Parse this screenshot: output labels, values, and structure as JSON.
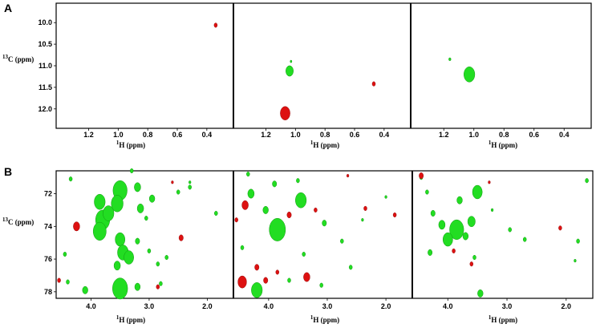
{
  "panels": {
    "A": {
      "letter": "A",
      "ylabel_sup": "13",
      "ylabel_rest": "C (ppm)",
      "xlabel_sup": "1",
      "xlabel_rest": "H (ppm)"
    },
    "B": {
      "letter": "B",
      "ylabel_sup": "13",
      "ylabel_rest": "C (ppm)",
      "xlabel_sup": "1",
      "xlabel_rest": "H (ppm)"
    }
  },
  "colors": {
    "positive": "#22dd22",
    "negative": "#dd1111",
    "frame": "#000000"
  },
  "chart_data": [
    {
      "type": "scatter",
      "panel": "A",
      "subplot": 1,
      "xlim": [
        1.42,
        0.22
      ],
      "ylim": [
        9.55,
        12.45
      ],
      "xticks": [
        "1.2",
        "1.0",
        "0.8",
        "0.6",
        "0.4"
      ],
      "yticks": [
        "10.0",
        "10.5",
        "11.0",
        "11.5",
        "12.0"
      ],
      "series": [
        {
          "color": "red",
          "points": [
            [
              0.34,
              10.06,
              0.3
            ]
          ]
        }
      ]
    },
    {
      "type": "scatter",
      "panel": "A",
      "subplot": 2,
      "xlim": [
        1.42,
        0.22
      ],
      "ylim": [
        9.55,
        12.45
      ],
      "xticks": [
        "1.2",
        "1.0",
        "0.8",
        "0.6",
        "0.4"
      ],
      "series": [
        {
          "color": "green",
          "points": [
            [
              1.04,
              11.12,
              0.7
            ],
            [
              1.03,
              10.9,
              0.15
            ]
          ]
        },
        {
          "color": "red",
          "points": [
            [
              1.07,
              12.1,
              0.9
            ],
            [
              0.47,
              11.42,
              0.3
            ]
          ]
        }
      ]
    },
    {
      "type": "scatter",
      "panel": "A",
      "subplot": 3,
      "xlim": [
        1.42,
        0.22
      ],
      "ylim": [
        9.55,
        12.45
      ],
      "xticks": [
        "1.2",
        "1.0",
        "0.8",
        "0.6",
        "0.4"
      ],
      "series": [
        {
          "color": "green",
          "points": [
            [
              1.03,
              11.2,
              1.0
            ],
            [
              1.16,
              10.85,
              0.2
            ]
          ]
        }
      ]
    },
    {
      "type": "scatter",
      "panel": "B",
      "subplot": 1,
      "xlim": [
        4.6,
        1.55
      ],
      "ylim": [
        70.6,
        78.4
      ],
      "xticks": [
        "4.0",
        "3.0",
        "2.0"
      ],
      "yticks": [
        "72",
        "74",
        "76",
        "78"
      ],
      "series": [
        {
          "color": "green",
          "points": [
            [
              3.5,
              71.8,
              1.3
            ],
            [
              3.55,
              72.6,
              1.1
            ],
            [
              3.85,
              72.5,
              1.0
            ],
            [
              3.8,
              73.6,
              1.3
            ],
            [
              3.85,
              74.3,
              1.2
            ],
            [
              3.7,
              73.2,
              1.0
            ],
            [
              3.5,
              74.8,
              0.9
            ],
            [
              3.45,
              75.6,
              1.0
            ],
            [
              3.35,
              75.9,
              0.9
            ],
            [
              3.5,
              77.8,
              1.4
            ],
            [
              3.2,
              71.6,
              0.6
            ],
            [
              3.15,
              72.9,
              0.6
            ],
            [
              2.95,
              72.3,
              0.5
            ],
            [
              3.2,
              74.9,
              0.4
            ],
            [
              3.0,
              75.5,
              0.3
            ],
            [
              3.55,
              76.4,
              0.6
            ],
            [
              3.2,
              77.7,
              0.5
            ],
            [
              2.8,
              77.5,
              0.3
            ],
            [
              2.7,
              75.9,
              0.3
            ],
            [
              2.5,
              71.9,
              0.3
            ],
            [
              2.3,
              71.6,
              0.3
            ],
            [
              1.85,
              73.2,
              0.3
            ],
            [
              4.4,
              77.4,
              0.3
            ],
            [
              4.35,
              71.1,
              0.3
            ],
            [
              4.1,
              77.9,
              0.5
            ],
            [
              4.45,
              75.7,
              0.3
            ],
            [
              3.3,
              70.6,
              0.3
            ],
            [
              3.05,
              73.5,
              0.3
            ],
            [
              2.85,
              76.3,
              0.3
            ],
            [
              2.3,
              71.3,
              0.2
            ]
          ]
        },
        {
          "color": "red",
          "points": [
            [
              4.25,
              74.0,
              0.6
            ],
            [
              2.45,
              74.7,
              0.4
            ],
            [
              2.85,
              77.7,
              0.3
            ],
            [
              4.55,
              77.3,
              0.3
            ],
            [
              2.6,
              71.3,
              0.2
            ]
          ]
        }
      ]
    },
    {
      "type": "scatter",
      "panel": "B",
      "subplot": 2,
      "xlim": [
        4.6,
        1.55
      ],
      "ylim": [
        70.6,
        78.4
      ],
      "xticks": [
        "4.0",
        "3.0",
        "2.0"
      ],
      "series": [
        {
          "color": "green",
          "points": [
            [
              3.85,
              74.2,
              1.5
            ],
            [
              3.45,
              72.4,
              1.0
            ],
            [
              4.3,
              72.0,
              0.6
            ],
            [
              3.9,
              71.4,
              0.4
            ],
            [
              4.05,
              73.0,
              0.5
            ],
            [
              4.2,
              77.9,
              1.0
            ],
            [
              3.05,
              73.8,
              0.4
            ],
            [
              2.75,
              74.9,
              0.3
            ],
            [
              3.4,
              75.7,
              0.3
            ],
            [
              4.35,
              70.8,
              0.3
            ],
            [
              3.5,
              71.2,
              0.3
            ],
            [
              2.4,
              73.6,
              0.2
            ],
            [
              3.1,
              77.6,
              0.3
            ],
            [
              2.6,
              76.5,
              0.3
            ],
            [
              2.0,
              72.2,
              0.2
            ],
            [
              4.45,
              75.3,
              0.3
            ],
            [
              3.65,
              77.3,
              0.3
            ]
          ]
        },
        {
          "color": "red",
          "points": [
            [
              4.45,
              77.4,
              0.8
            ],
            [
              3.35,
              77.1,
              0.6
            ],
            [
              3.65,
              73.3,
              0.4
            ],
            [
              4.4,
              72.7,
              0.6
            ],
            [
              4.2,
              76.5,
              0.4
            ],
            [
              4.05,
              77.3,
              0.4
            ],
            [
              3.2,
              73.0,
              0.3
            ],
            [
              4.55,
              73.6,
              0.3
            ],
            [
              2.35,
              72.9,
              0.3
            ],
            [
              1.85,
              73.3,
              0.3
            ],
            [
              2.65,
              70.9,
              0.2
            ],
            [
              3.85,
              76.8,
              0.3
            ]
          ]
        }
      ]
    },
    {
      "type": "scatter",
      "panel": "B",
      "subplot": 3,
      "xlim": [
        4.6,
        1.55
      ],
      "ylim": [
        70.6,
        78.4
      ],
      "xticks": [
        "4.0",
        "3.0",
        "2.0"
      ],
      "series": [
        {
          "color": "green",
          "points": [
            [
              3.85,
              74.2,
              1.3
            ],
            [
              3.5,
              71.9,
              0.9
            ],
            [
              4.0,
              74.8,
              0.9
            ],
            [
              3.6,
              73.7,
              0.7
            ],
            [
              4.1,
              73.9,
              0.6
            ],
            [
              3.8,
              72.4,
              0.5
            ],
            [
              4.25,
              73.2,
              0.4
            ],
            [
              4.35,
              71.9,
              0.3
            ],
            [
              3.45,
              78.1,
              0.5
            ],
            [
              3.55,
              75.9,
              0.3
            ],
            [
              4.3,
              75.6,
              0.4
            ],
            [
              2.95,
              74.2,
              0.3
            ],
            [
              2.7,
              74.8,
              0.3
            ],
            [
              1.8,
              74.9,
              0.3
            ],
            [
              1.85,
              76.1,
              0.2
            ],
            [
              4.45,
              71.0,
              0.3
            ],
            [
              1.65,
              71.2,
              0.3
            ],
            [
              3.25,
              73.0,
              0.2
            ],
            [
              3.7,
              74.6,
              0.5
            ]
          ]
        },
        {
          "color": "red",
          "points": [
            [
              4.45,
              70.9,
              0.4
            ],
            [
              3.9,
              75.5,
              0.3
            ],
            [
              3.6,
              76.3,
              0.3
            ],
            [
              2.1,
              74.1,
              0.3
            ],
            [
              3.3,
              71.3,
              0.2
            ]
          ]
        }
      ]
    }
  ]
}
